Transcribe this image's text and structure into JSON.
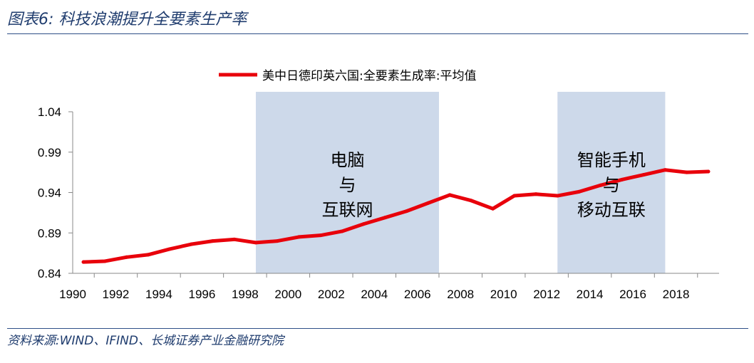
{
  "figure": {
    "title": "图表6:  科技浪潮提升全要素生产率",
    "source": "资料来源:WIND、IFIND、长城证券产业金融研究院"
  },
  "colors": {
    "line": "#e8000b",
    "band": "#cdd9ea",
    "rule": "#2e4f87",
    "title": "#1f3c6e"
  },
  "chart_data": {
    "type": "line",
    "legend": "美中日德印英六国:全要素生成率:平均值",
    "legend_position": "top-center",
    "grid": false,
    "x": [
      1990,
      1991,
      1992,
      1993,
      1994,
      1995,
      1996,
      1997,
      1998,
      1999,
      2000,
      2001,
      2002,
      2003,
      2004,
      2005,
      2006,
      2007,
      2008,
      2009,
      2010,
      2011,
      2012,
      2013,
      2014,
      2015,
      2016,
      2017,
      2018,
      2019
    ],
    "series": [
      {
        "name": "美中日德印英六国:全要素生成率:平均值",
        "values": [
          0.854,
          0.855,
          0.86,
          0.863,
          0.87,
          0.876,
          0.88,
          0.882,
          0.878,
          0.88,
          0.885,
          0.887,
          0.892,
          0.901,
          0.909,
          0.917,
          0.927,
          0.937,
          0.93,
          0.92,
          0.936,
          0.938,
          0.936,
          0.941,
          0.949,
          0.956,
          0.962,
          0.968,
          0.965,
          0.966
        ]
      }
    ],
    "xticks": [
      "1990",
      "1992",
      "1994",
      "1996",
      "1998",
      "2000",
      "2002",
      "2004",
      "2006",
      "2008",
      "2010",
      "2012",
      "2014",
      "2016",
      "2018"
    ],
    "yticks": [
      "0.84",
      "0.89",
      "0.94",
      "0.99",
      "1.04"
    ],
    "ylim": [
      0.84,
      1.04
    ],
    "xlim": [
      1990,
      2020
    ],
    "shaded_periods": [
      {
        "from": 1998.5,
        "to": 2007.0,
        "label_lines": [
          "电脑",
          "与",
          "互联网"
        ]
      },
      {
        "from": 2012.5,
        "to": 2017.5,
        "label_lines": [
          "智能手机",
          "与",
          "移动互联"
        ]
      }
    ]
  }
}
